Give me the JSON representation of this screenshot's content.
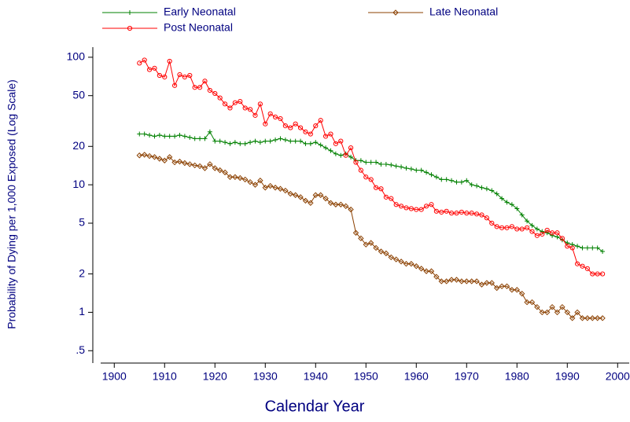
{
  "chart_data": {
    "type": "line",
    "xlabel": "Calendar Year",
    "ylabel": "Probability of Dying per 1,000 Exposed (Log Scale)",
    "log_y": true,
    "legend": "top",
    "x": [
      1905,
      1906,
      1907,
      1908,
      1909,
      1910,
      1911,
      1912,
      1913,
      1914,
      1915,
      1916,
      1917,
      1918,
      1919,
      1920,
      1921,
      1922,
      1923,
      1924,
      1925,
      1926,
      1927,
      1928,
      1929,
      1930,
      1931,
      1932,
      1933,
      1934,
      1935,
      1936,
      1937,
      1938,
      1939,
      1940,
      1941,
      1942,
      1943,
      1944,
      1945,
      1946,
      1947,
      1948,
      1949,
      1950,
      1951,
      1952,
      1953,
      1954,
      1955,
      1956,
      1957,
      1958,
      1959,
      1960,
      1961,
      1962,
      1963,
      1964,
      1965,
      1966,
      1967,
      1968,
      1969,
      1970,
      1971,
      1972,
      1973,
      1974,
      1975,
      1976,
      1977,
      1978,
      1979,
      1980,
      1981,
      1982,
      1983,
      1984,
      1985,
      1986,
      1987,
      1988,
      1989,
      1990,
      1991,
      1992,
      1993,
      1994,
      1995,
      1996,
      1997
    ],
    "series": [
      {
        "name": "Early Neonatal",
        "color": "#008000",
        "marker": "plus",
        "values": [
          25,
          25,
          24.5,
          24,
          24.5,
          24,
          24,
          24,
          24.5,
          24,
          23.5,
          23,
          23,
          23,
          26,
          22,
          22,
          21.5,
          21,
          21.5,
          21,
          21,
          21.5,
          22,
          21.5,
          22,
          22,
          22.5,
          23,
          22.5,
          22,
          22,
          22,
          21,
          21,
          21.5,
          20.5,
          19.5,
          18.5,
          17.5,
          17,
          17.5,
          16.5,
          15.5,
          15.5,
          15,
          15,
          15,
          14.5,
          14.5,
          14.3,
          14,
          13.8,
          13.5,
          13.3,
          13,
          13,
          12.5,
          12,
          11.5,
          11,
          11,
          10.8,
          10.5,
          10.5,
          10.8,
          10,
          9.8,
          9.5,
          9.3,
          9,
          8.5,
          7.8,
          7.3,
          7,
          6.5,
          5.8,
          5.2,
          4.8,
          4.5,
          4.3,
          4.2,
          4,
          3.9,
          3.7,
          3.5,
          3.4,
          3.3,
          3.2,
          3.2,
          3.2,
          3.2,
          3.0
        ]
      },
      {
        "name": "Late Neonatal",
        "color": "#8b4000",
        "marker": "diamond",
        "values": [
          17,
          17.2,
          16.8,
          16.5,
          16,
          15.5,
          16.5,
          15,
          15.2,
          14.8,
          14.5,
          14.2,
          14,
          13.5,
          14.5,
          13.5,
          13,
          12.5,
          11.5,
          11.5,
          11.3,
          11,
          10.5,
          10,
          10.8,
          9.5,
          9.8,
          9.5,
          9.3,
          9,
          8.5,
          8.3,
          8,
          7.5,
          7.2,
          8.3,
          8.3,
          7.8,
          7.2,
          7,
          7,
          6.8,
          6.4,
          4.2,
          3.8,
          3.4,
          3.5,
          3.2,
          3,
          2.9,
          2.7,
          2.6,
          2.5,
          2.4,
          2.4,
          2.3,
          2.2,
          2.1,
          2.1,
          1.9,
          1.75,
          1.75,
          1.8,
          1.8,
          1.75,
          1.75,
          1.75,
          1.75,
          1.65,
          1.7,
          1.7,
          1.55,
          1.6,
          1.6,
          1.5,
          1.5,
          1.4,
          1.2,
          1.2,
          1.1,
          1,
          1,
          1.1,
          1,
          1.1,
          1,
          0.9,
          1,
          0.9,
          0.9,
          0.9,
          0.9,
          0.9
        ]
      },
      {
        "name": "Post Neonatal",
        "color": "#ff0000",
        "marker": "circle",
        "values": [
          90,
          95,
          80,
          82,
          72,
          70,
          93,
          60,
          73,
          70,
          72,
          58,
          58,
          65,
          55,
          52,
          48,
          43,
          40,
          44,
          45,
          40,
          39,
          35,
          43,
          30,
          36,
          34,
          33,
          29,
          28,
          30,
          28,
          26,
          25,
          29,
          32,
          24,
          25,
          21,
          22,
          17,
          19.5,
          15,
          13,
          11.5,
          11,
          9.5,
          9.3,
          8,
          7.8,
          7,
          6.8,
          6.6,
          6.5,
          6.4,
          6.4,
          6.8,
          7,
          6.2,
          6.1,
          6.2,
          6,
          6,
          6.1,
          6,
          6,
          5.9,
          5.8,
          5.5,
          5,
          4.7,
          4.6,
          4.6,
          4.7,
          4.5,
          4.5,
          4.6,
          4.3,
          4,
          4.1,
          4.4,
          4.2,
          4.2,
          3.8,
          3.3,
          3.2,
          2.4,
          2.3,
          2.2,
          2,
          2,
          2
        ]
      }
    ],
    "xlim": [
      1897.3,
      2002.3
    ],
    "xticks": [
      1900,
      1910,
      1920,
      1930,
      1940,
      1950,
      1960,
      1970,
      1980,
      1990,
      2000
    ],
    "ylim": [
      0.4,
      120
    ],
    "yticks": [
      {
        "value": 0.5,
        "label": ".5"
      },
      1,
      2,
      5,
      10,
      20,
      50,
      100
    ]
  }
}
